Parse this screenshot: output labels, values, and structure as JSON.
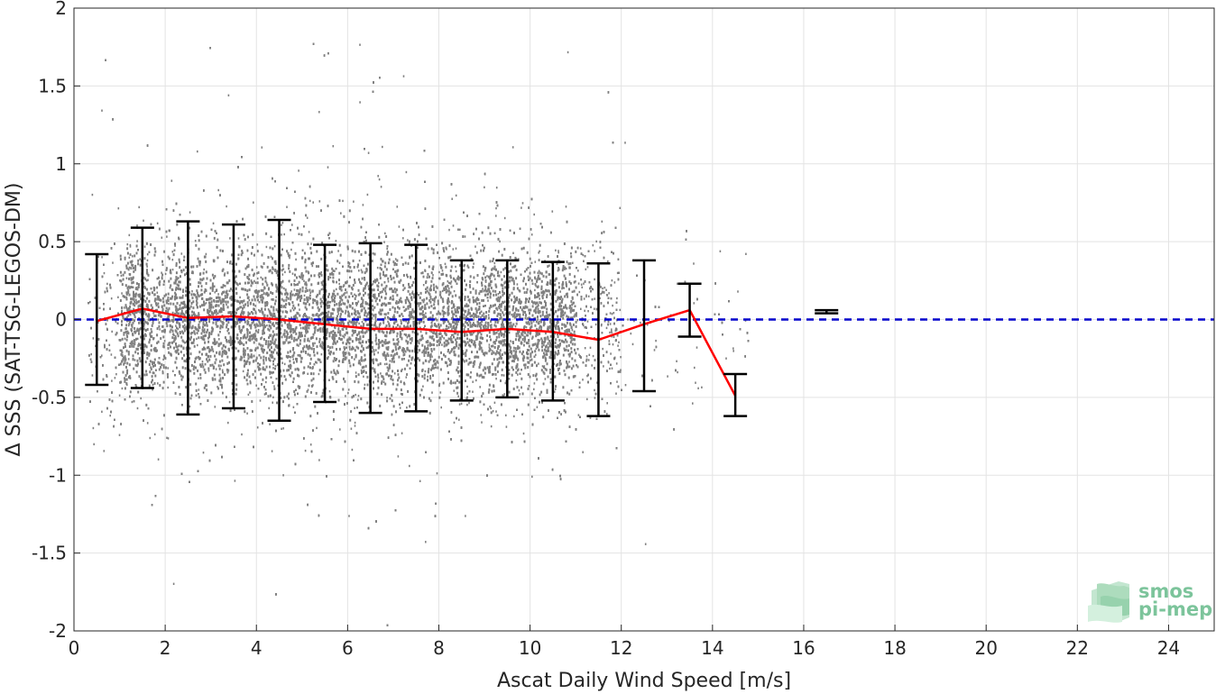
{
  "chart_data": {
    "type": "scatter",
    "title": "",
    "xlabel": "Ascat Daily Wind Speed [m/s]",
    "ylabel": "Δ SSS (SAT-TSG-LEGOS-DM)",
    "xlim": [
      0,
      25
    ],
    "ylim": [
      -2,
      2
    ],
    "xticks": [
      0,
      2,
      4,
      6,
      8,
      10,
      12,
      14,
      16,
      18,
      20,
      22,
      24
    ],
    "xtick_labels": [
      "0",
      "2",
      "4",
      "6",
      "8",
      "10",
      "12",
      "14",
      "16",
      "18",
      "20",
      "22",
      "24"
    ],
    "yticks": [
      -2,
      -1.5,
      -1,
      -0.5,
      0,
      0.5,
      1,
      1.5,
      2
    ],
    "ytick_labels": [
      "-2",
      "-1.5",
      "-1",
      "-0.5",
      "0",
      "0.5",
      "1",
      "1.5",
      "2"
    ],
    "grid": true,
    "scatter_cloud": {
      "description_color": "#808080",
      "x_range": [
        0,
        15
      ],
      "y_range": [
        -2,
        2
      ]
    },
    "series": [
      {
        "type": "line",
        "color": "#ff0000",
        "x": [
          0.5,
          1.5,
          2.5,
          3.5,
          4.5,
          5.5,
          6.5,
          7.5,
          8.5,
          9.5,
          10.5,
          11.5,
          12.5,
          13.5,
          14.5
        ],
        "values": [
          -0.01,
          0.07,
          0.01,
          0.02,
          0.0,
          -0.03,
          -0.06,
          -0.06,
          -0.08,
          -0.06,
          -0.08,
          -0.13,
          -0.03,
          0.06,
          -0.49
        ]
      },
      {
        "type": "errorbar",
        "color": "#000000",
        "x": [
          0.5,
          1.5,
          2.5,
          3.5,
          4.5,
          5.5,
          6.5,
          7.5,
          8.5,
          9.5,
          10.5,
          11.5,
          12.5,
          13.5,
          14.5,
          16.5
        ],
        "lower": [
          -0.42,
          -0.44,
          -0.61,
          -0.57,
          -0.65,
          -0.53,
          -0.6,
          -0.59,
          -0.52,
          -0.5,
          -0.52,
          -0.62,
          -0.46,
          -0.11,
          -0.62,
          0.04
        ],
        "upper": [
          0.42,
          0.59,
          0.63,
          0.61,
          0.64,
          0.48,
          0.49,
          0.48,
          0.38,
          0.38,
          0.37,
          0.36,
          0.38,
          0.23,
          -0.35,
          0.06
        ]
      },
      {
        "type": "reference_line",
        "color": "#0000cc",
        "y": 0,
        "style": "dashed"
      }
    ]
  },
  "logo": {
    "line1": "smos",
    "line2": "pi-mep",
    "color": "#7cc49b"
  }
}
